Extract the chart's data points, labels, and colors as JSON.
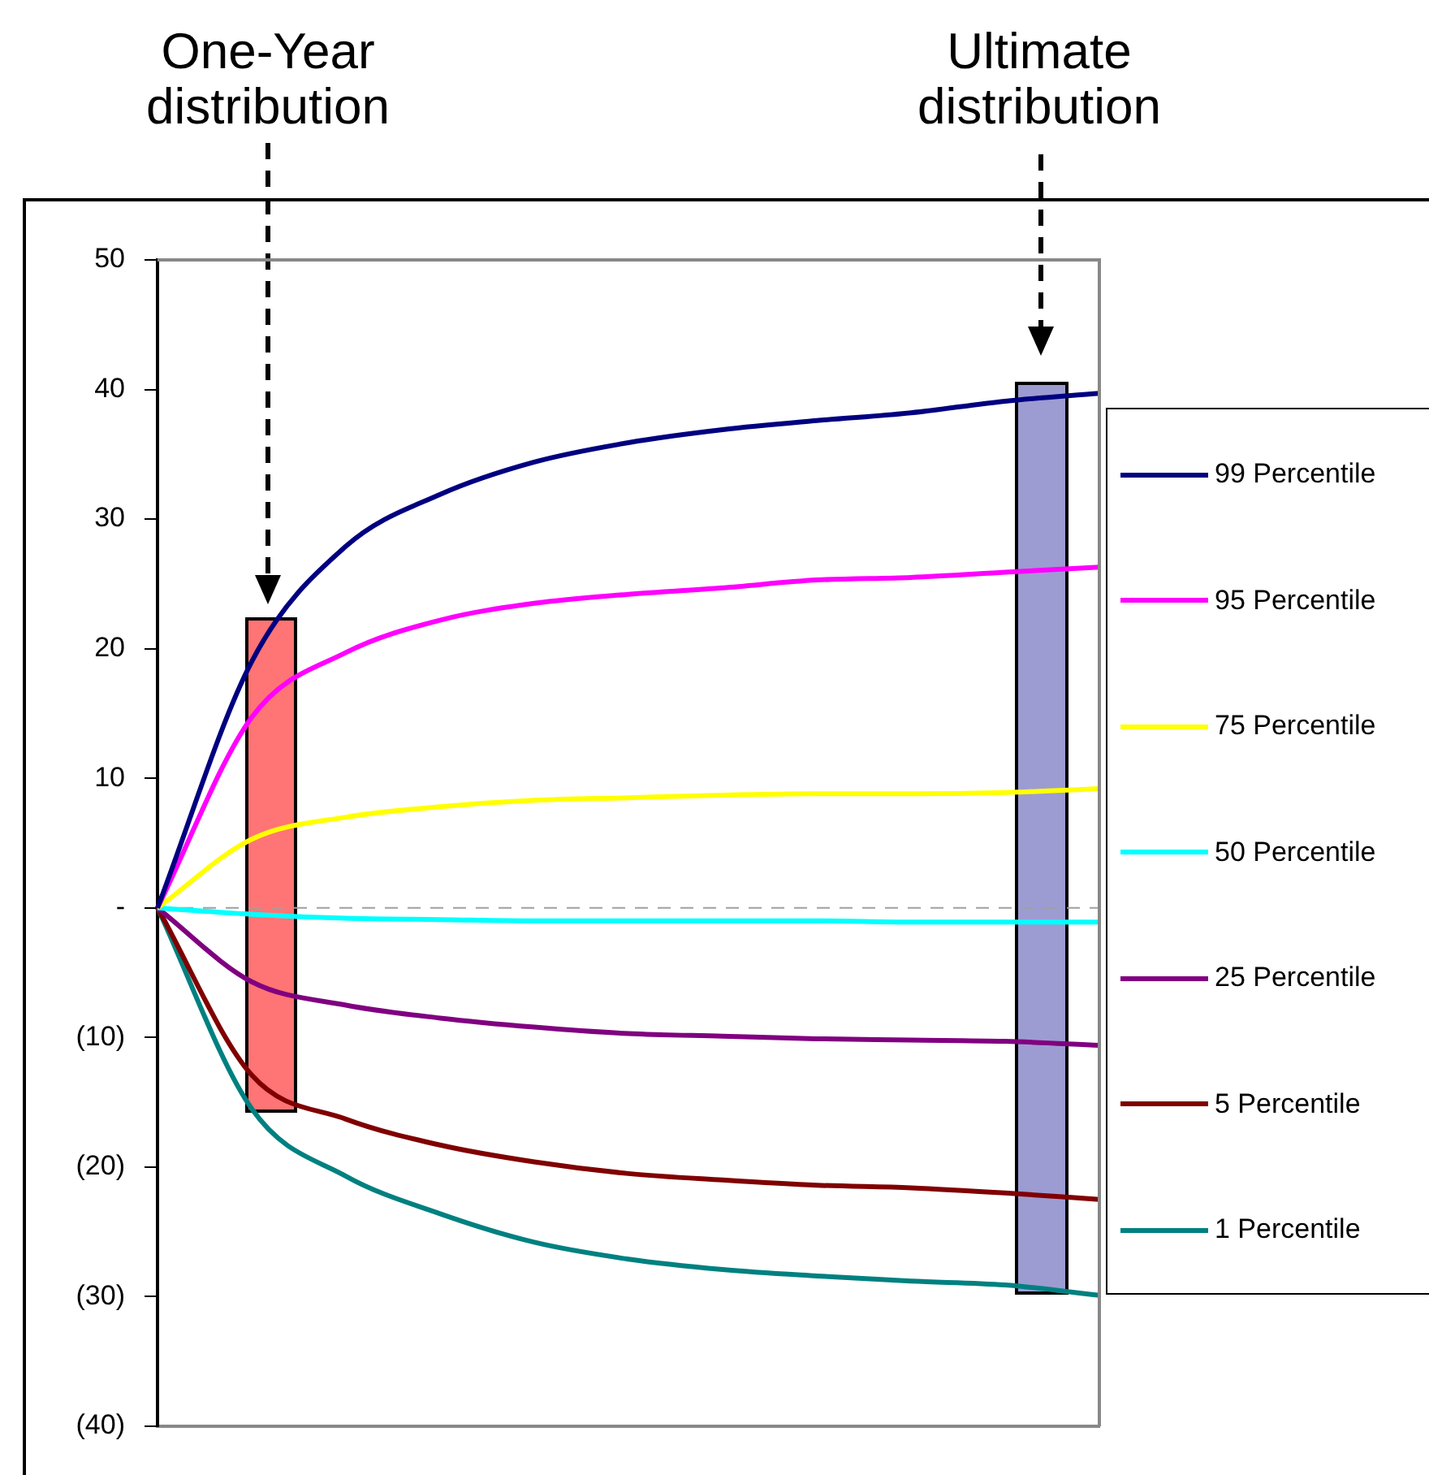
{
  "chart_data": {
    "type": "line",
    "categories": [
      null,
      null,
      null,
      null,
      null,
      null,
      null,
      null,
      null,
      null,
      null
    ],
    "series": [
      {
        "name": "99 Percentile",
        "color": "#000080",
        "values": [
          0,
          19,
          27.9,
          31.9,
          34.4,
          35.9,
          36.9,
          37.6,
          38.2,
          39.1,
          39.7
        ]
      },
      {
        "name": "95 Percentile",
        "color": "#ff00ff",
        "values": [
          0,
          14.7,
          19.7,
          22.2,
          23.5,
          24.2,
          24.7,
          25.3,
          25.5,
          25.9,
          26.3
        ]
      },
      {
        "name": "75 Percentile",
        "color": "#ffff00",
        "values": [
          0,
          5.3,
          7,
          7.8,
          8.3,
          8.5,
          8.7,
          8.8,
          8.8,
          8.9,
          9.2
        ]
      },
      {
        "name": "50 Percentile",
        "color": "#00ffff",
        "values": [
          0,
          -0.5,
          -0.8,
          -0.9,
          -1,
          -1,
          -1,
          -1,
          -1.1,
          -1.1,
          -1.1
        ]
      },
      {
        "name": "25 Percentile",
        "color": "#800080",
        "values": [
          0,
          -5.7,
          -7.5,
          -8.5,
          -9.2,
          -9.7,
          -9.9,
          -10.1,
          -10.2,
          -10.3,
          -10.6
        ]
      },
      {
        "name": "5 Percentile",
        "color": "#800000",
        "values": [
          0,
          -12.9,
          -16.3,
          -18.3,
          -19.6,
          -20.5,
          -21,
          -21.4,
          -21.6,
          -22,
          -22.5
        ]
      },
      {
        "name": "1 Percentile",
        "color": "#008080",
        "values": [
          0,
          -15.5,
          -20.7,
          -23.6,
          -25.8,
          -27.1,
          -27.9,
          -28.4,
          -28.8,
          -29.1,
          -29.9
        ]
      }
    ],
    "ylim": [
      -40,
      50
    ],
    "yticks": [
      50,
      40,
      30,
      20,
      10,
      {
        "value": 0,
        "label": "-"
      },
      {
        "value": -10,
        "label": "(10)"
      },
      {
        "value": -20,
        "label": "(20)"
      },
      {
        "value": -30,
        "label": "(30)"
      },
      {
        "value": -40,
        "label": "(40)"
      }
    ],
    "tick_labels": "y",
    "grid": false,
    "legend": "right",
    "marker": "none",
    "line_style": "solid",
    "ref_lines": [
      {
        "axis": "y",
        "value": 0,
        "color": "#a0a0a0",
        "line_style": "dashed"
      }
    ],
    "annotations": [
      "One-Year distribution",
      "Ultimate distribution"
    ]
  }
}
